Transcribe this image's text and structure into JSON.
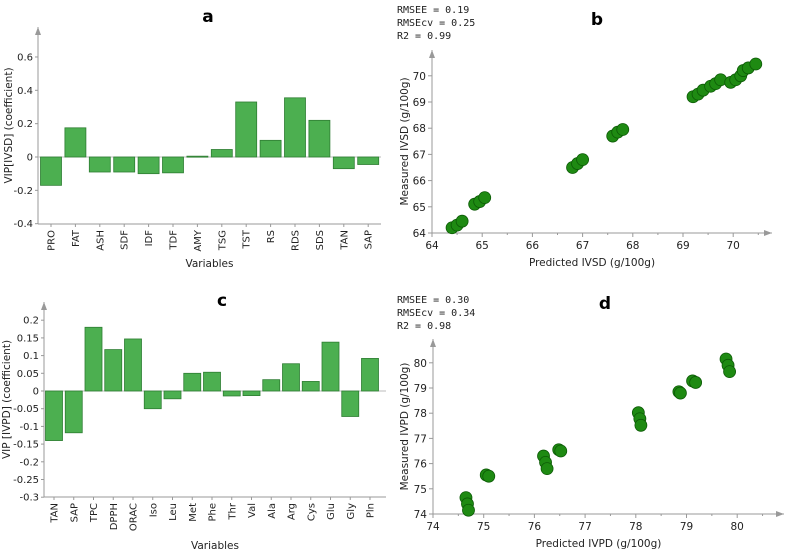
{
  "chart_data": [
    {
      "panel": "a",
      "type": "bar",
      "title": "a",
      "xlabel": "Variables",
      "ylabel": "VIP[IVSD] (coefficient)",
      "categories": [
        "PRO",
        "FAT",
        "ASH",
        "SDF",
        "IDF",
        "TDF",
        "AMY",
        "TSG",
        "TST",
        "RS",
        "RDS",
        "SDS",
        "TAN",
        "SAP"
      ],
      "values": [
        -0.17,
        0.175,
        -0.09,
        -0.09,
        -0.1,
        -0.095,
        0.005,
        0.045,
        0.33,
        0.1,
        0.355,
        0.22,
        -0.07,
        -0.045
      ],
      "ylim": [
        -0.4,
        0.7
      ],
      "yticks": [
        "0.6",
        "0.4",
        "0.2",
        "0",
        "-0.2",
        "-0.4"
      ],
      "ytick_values": [
        0.6,
        0.4,
        0.2,
        0,
        -0.2,
        -0.4
      ],
      "grid": false
    },
    {
      "panel": "b",
      "type": "scatter",
      "title": "b",
      "xlabel": "Predicted IVSD (g/100g)",
      "ylabel": "Measured IVSD (g/100g)",
      "stats": [
        "RMSEE = 0.19",
        "RMSEcv = 0.25",
        "R2 = 0.99"
      ],
      "xlim": [
        64,
        70.9
      ],
      "ylim": [
        64,
        70.8
      ],
      "xticks": [
        "64",
        "65",
        "66",
        "67",
        "68",
        "69",
        "70"
      ],
      "xtick_values": [
        64,
        65,
        66,
        67,
        68,
        69,
        70
      ],
      "yticks": [
        "64",
        "65",
        "66",
        "67",
        "68",
        "69",
        "70"
      ],
      "ytick_values": [
        64,
        65,
        66,
        67,
        68,
        69,
        70
      ],
      "x": [
        64.4,
        64.5,
        64.6,
        64.85,
        64.95,
        65.05,
        66.8,
        66.9,
        67.0,
        67.6,
        67.7,
        67.8,
        69.2,
        69.3,
        69.4,
        69.55,
        69.65,
        69.75,
        69.95,
        70.05,
        70.15,
        70.2,
        70.3,
        70.45
      ],
      "y": [
        64.2,
        64.3,
        64.45,
        65.1,
        65.2,
        65.35,
        66.5,
        66.65,
        66.8,
        67.7,
        67.85,
        67.95,
        69.2,
        69.3,
        69.45,
        69.6,
        69.7,
        69.85,
        69.75,
        69.85,
        70.0,
        70.2,
        70.3,
        70.45
      ]
    },
    {
      "panel": "c",
      "type": "bar",
      "title": "c",
      "xlabel": "Variables",
      "ylabel": "VIP [IVPD] (coefficient)",
      "categories": [
        "TAN",
        "SAP",
        "TPC",
        "DPPH",
        "ORAC",
        "Iso",
        "Leu",
        "Met",
        "Phe",
        "Thr",
        "Val",
        "Ala",
        "Arg",
        "Cys",
        "Glu",
        "Gly",
        "Pln"
      ],
      "values": [
        -0.14,
        -0.118,
        0.18,
        0.117,
        0.147,
        -0.05,
        -0.022,
        0.05,
        0.053,
        -0.014,
        -0.013,
        0.032,
        0.077,
        0.027,
        0.138,
        -0.072,
        0.092
      ],
      "ylim": [
        -0.3,
        0.24
      ],
      "yticks": [
        "0.2",
        "0.15",
        "0.1",
        "0.05",
        "0",
        "-0.05",
        "-0.1",
        "-0.15",
        "-0.2",
        "-0.25",
        "-0.3"
      ],
      "ytick_values": [
        0.2,
        0.15,
        0.1,
        0.05,
        0,
        -0.05,
        -0.1,
        -0.15,
        -0.2,
        -0.25,
        -0.3
      ],
      "grid": false
    },
    {
      "panel": "d",
      "type": "scatter",
      "title": "d",
      "xlabel": "Predicted IVPD (g/100g)",
      "ylabel": "Measured IVPD (g/100g)",
      "stats": [
        "RMSEE = 0.30",
        "RMSEcv = 0.34",
        "R2 = 0.98"
      ],
      "xlim": [
        74,
        80.9
      ],
      "ylim": [
        74,
        80.9
      ],
      "xticks": [
        "74",
        "75",
        "76",
        "77",
        "78",
        "79",
        "80"
      ],
      "xtick_values": [
        74,
        75,
        76,
        77,
        78,
        79,
        80
      ],
      "yticks": [
        "74",
        "75",
        "76",
        "77",
        "78",
        "79",
        "80"
      ],
      "ytick_values": [
        74,
        75,
        76,
        77,
        78,
        79,
        80
      ],
      "x": [
        74.65,
        74.68,
        74.7,
        75.05,
        75.1,
        76.18,
        76.22,
        76.25,
        76.48,
        76.52,
        78.05,
        78.08,
        78.1,
        78.85,
        78.88,
        79.12,
        79.18,
        79.78,
        79.82,
        79.85
      ],
      "y": [
        74.65,
        74.4,
        74.15,
        75.55,
        75.5,
        76.3,
        76.05,
        75.8,
        76.55,
        76.5,
        78.02,
        77.78,
        77.52,
        78.85,
        78.8,
        79.28,
        79.22,
        80.15,
        79.9,
        79.65
      ]
    }
  ],
  "colors": {
    "bar": "#4caf50",
    "bar_edge": "#2e7d32",
    "point": "#1e8a12",
    "point_edge": "#0c5a06",
    "axis": "#999999"
  }
}
